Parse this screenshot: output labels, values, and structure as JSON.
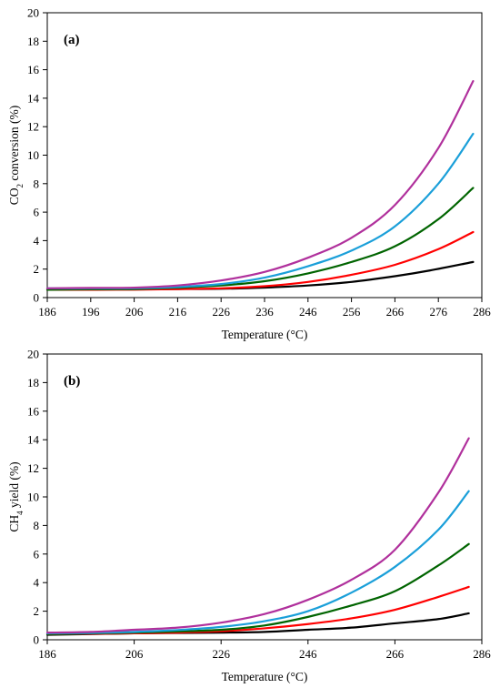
{
  "chart_data": [
    {
      "type": "line",
      "panel_label": "(a)",
      "xlabel": "Temperature (°C)",
      "ylabel": {
        "base": "CO",
        "sub": "2",
        "rest": " conversion (%)"
      },
      "xlim": [
        186,
        286
      ],
      "ylim": [
        0,
        20
      ],
      "xticks": [
        "186",
        "196",
        "206",
        "216",
        "226",
        "236",
        "246",
        "256",
        "266",
        "276",
        "286"
      ],
      "yticks": [
        "0",
        "2",
        "4",
        "6",
        "8",
        "10",
        "12",
        "14",
        "16",
        "18",
        "20"
      ],
      "grid": false,
      "series": [
        {
          "color": "#000000",
          "points": [
            [
              186,
              0.6
            ],
            [
              196,
              0.6
            ],
            [
              206,
              0.6
            ],
            [
              216,
              0.6
            ],
            [
              226,
              0.62
            ],
            [
              236,
              0.7
            ],
            [
              246,
              0.85
            ],
            [
              256,
              1.1
            ],
            [
              266,
              1.5
            ],
            [
              274,
              1.9
            ],
            [
              284,
              2.5
            ]
          ]
        },
        {
          "color": "#ff0000",
          "points": [
            [
              186,
              0.55
            ],
            [
              196,
              0.55
            ],
            [
              206,
              0.56
            ],
            [
              216,
              0.6
            ],
            [
              226,
              0.65
            ],
            [
              236,
              0.8
            ],
            [
              246,
              1.1
            ],
            [
              256,
              1.6
            ],
            [
              266,
              2.3
            ],
            [
              276,
              3.4
            ],
            [
              284,
              4.6
            ]
          ]
        },
        {
          "color": "#006400",
          "points": [
            [
              186,
              0.55
            ],
            [
              196,
              0.58
            ],
            [
              206,
              0.6
            ],
            [
              216,
              0.7
            ],
            [
              226,
              0.85
            ],
            [
              236,
              1.15
            ],
            [
              246,
              1.7
            ],
            [
              256,
              2.5
            ],
            [
              266,
              3.6
            ],
            [
              276,
              5.5
            ],
            [
              284,
              7.7
            ]
          ]
        },
        {
          "color": "#1a9fd9",
          "points": [
            [
              186,
              0.65
            ],
            [
              196,
              0.65
            ],
            [
              206,
              0.66
            ],
            [
              216,
              0.75
            ],
            [
              226,
              0.95
            ],
            [
              236,
              1.4
            ],
            [
              246,
              2.2
            ],
            [
              256,
              3.3
            ],
            [
              266,
              5.0
            ],
            [
              276,
              8.0
            ],
            [
              284,
              11.5
            ]
          ]
        },
        {
          "color": "#b0309c",
          "points": [
            [
              186,
              0.65
            ],
            [
              196,
              0.68
            ],
            [
              206,
              0.7
            ],
            [
              216,
              0.85
            ],
            [
              226,
              1.2
            ],
            [
              236,
              1.8
            ],
            [
              246,
              2.8
            ],
            [
              256,
              4.2
            ],
            [
              266,
              6.5
            ],
            [
              276,
              10.5
            ],
            [
              284,
              15.2
            ]
          ]
        }
      ]
    },
    {
      "type": "line",
      "panel_label": "(b)",
      "xlabel": "Temperature (°C)",
      "ylabel": {
        "base": "CH",
        "sub": "4",
        "rest": " yield (%)"
      },
      "xlim": [
        186,
        286
      ],
      "ylim": [
        0,
        20
      ],
      "xticks": [
        "186",
        "206",
        "226",
        "246",
        "266",
        "286"
      ],
      "yticks": [
        "0",
        "2",
        "4",
        "6",
        "8",
        "10",
        "12",
        "14",
        "16",
        "18",
        "20"
      ],
      "grid": false,
      "series": [
        {
          "color": "#000000",
          "points": [
            [
              186,
              0.35
            ],
            [
              196,
              0.4
            ],
            [
              206,
              0.45
            ],
            [
              216,
              0.48
            ],
            [
              226,
              0.5
            ],
            [
              236,
              0.55
            ],
            [
              246,
              0.7
            ],
            [
              256,
              0.85
            ],
            [
              266,
              1.15
            ],
            [
              276,
              1.45
            ],
            [
              283,
              1.85
            ]
          ]
        },
        {
          "color": "#ff0000",
          "points": [
            [
              186,
              0.4
            ],
            [
              196,
              0.42
            ],
            [
              206,
              0.45
            ],
            [
              216,
              0.5
            ],
            [
              226,
              0.6
            ],
            [
              236,
              0.8
            ],
            [
              246,
              1.1
            ],
            [
              256,
              1.5
            ],
            [
              266,
              2.1
            ],
            [
              276,
              3.0
            ],
            [
              283,
              3.7
            ]
          ]
        },
        {
          "color": "#006400",
          "points": [
            [
              186,
              0.4
            ],
            [
              196,
              0.45
            ],
            [
              206,
              0.5
            ],
            [
              216,
              0.58
            ],
            [
              226,
              0.7
            ],
            [
              236,
              1.0
            ],
            [
              246,
              1.6
            ],
            [
              256,
              2.4
            ],
            [
              266,
              3.4
            ],
            [
              276,
              5.2
            ],
            [
              283,
              6.7
            ]
          ]
        },
        {
          "color": "#1a9fd9",
          "points": [
            [
              186,
              0.45
            ],
            [
              196,
              0.48
            ],
            [
              206,
              0.55
            ],
            [
              216,
              0.68
            ],
            [
              226,
              0.9
            ],
            [
              236,
              1.3
            ],
            [
              246,
              2.0
            ],
            [
              256,
              3.3
            ],
            [
              266,
              5.1
            ],
            [
              276,
              7.7
            ],
            [
              283,
              10.4
            ]
          ]
        },
        {
          "color": "#b0309c",
          "points": [
            [
              186,
              0.5
            ],
            [
              196,
              0.55
            ],
            [
              206,
              0.7
            ],
            [
              216,
              0.85
            ],
            [
              226,
              1.2
            ],
            [
              236,
              1.8
            ],
            [
              246,
              2.8
            ],
            [
              256,
              4.2
            ],
            [
              266,
              6.3
            ],
            [
              276,
              10.3
            ],
            [
              283,
              14.1
            ]
          ]
        }
      ]
    }
  ]
}
